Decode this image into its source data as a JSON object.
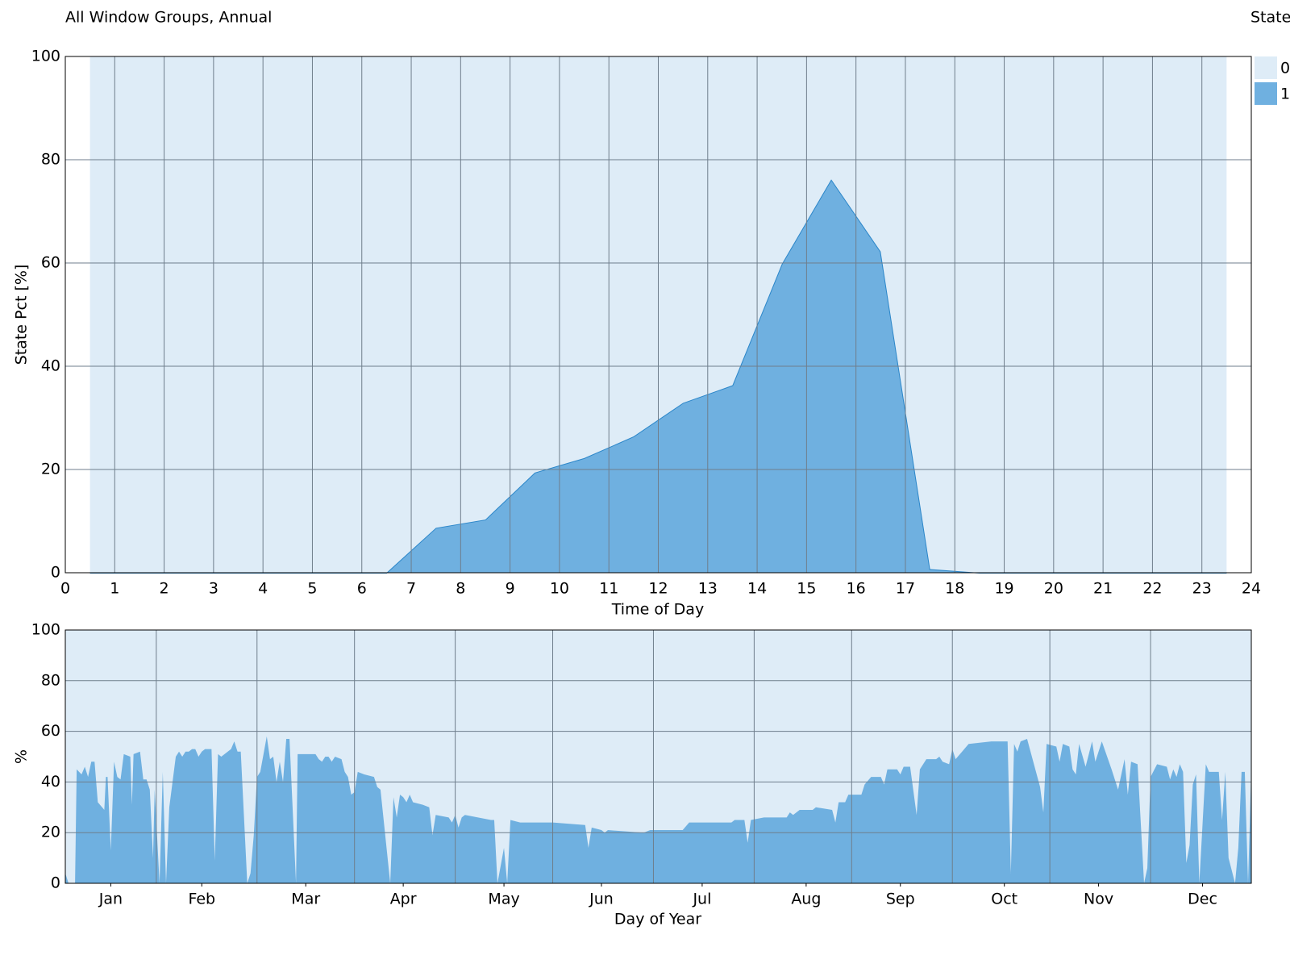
{
  "chart_data": [
    {
      "type": "stacked-area",
      "title": "All Window Groups, Annual",
      "legend_title": "State",
      "legend": "right",
      "xlabel": "Time of Day",
      "ylabel": "State Pct [%]",
      "x": [
        0.5,
        1.5,
        2.5,
        3.5,
        4.5,
        5.5,
        6.5,
        7.5,
        8.5,
        9.5,
        10.5,
        11.5,
        12.5,
        13.5,
        14.5,
        15.5,
        16.5,
        17.5,
        18.5,
        19.5,
        20.5,
        21.5,
        22.5,
        23.5
      ],
      "series": [
        {
          "name": "1",
          "color": "#6fb0e0",
          "line_color": "#2b86c9",
          "values": [
            0,
            0,
            0,
            0,
            0,
            0,
            0,
            8.7,
            10.3,
            19.4,
            22.2,
            26.4,
            32.9,
            36.3,
            59.8,
            76.2,
            62.2,
            0.7,
            0,
            0,
            0,
            0,
            0,
            0
          ]
        },
        {
          "name": "0",
          "color": "#deecf7",
          "values": [
            100,
            100,
            100,
            100,
            100,
            100,
            100,
            91.3,
            89.7,
            80.6,
            77.8,
            73.6,
            67.1,
            63.7,
            40.2,
            23.8,
            37.8,
            99.3,
            100,
            100,
            100,
            100,
            100,
            100
          ]
        }
      ],
      "xlim": [
        0,
        24
      ],
      "xticks": [
        0,
        1,
        2,
        3,
        4,
        5,
        6,
        7,
        8,
        9,
        10,
        11,
        12,
        13,
        14,
        15,
        16,
        17,
        18,
        19,
        20,
        21,
        22,
        23,
        24
      ],
      "ylim": [
        0,
        100
      ],
      "yticks": [
        0,
        20,
        40,
        60,
        80,
        100
      ],
      "grid": true
    },
    {
      "type": "area",
      "xlabel": "Day of Year",
      "ylabel": "%",
      "background": "#deecf7",
      "color": "#6fb0e0",
      "x": [
        0,
        1,
        3,
        3.5,
        5,
        6,
        7,
        8,
        9,
        10,
        12,
        12.5,
        13,
        14,
        15,
        16,
        17,
        18,
        20,
        20.5,
        21,
        23,
        24,
        25,
        26,
        27,
        27.5,
        29,
        30,
        31,
        32,
        34,
        35,
        36,
        37,
        38,
        39,
        40,
        41,
        42,
        43,
        45,
        46,
        47,
        48,
        50,
        51,
        52,
        53,
        54,
        56,
        57,
        58,
        59,
        60,
        62,
        63,
        64,
        65,
        66,
        67,
        68,
        69,
        71,
        71.5,
        77,
        78,
        79,
        80,
        81,
        82,
        83,
        85,
        86,
        87,
        88,
        89,
        90,
        92,
        95,
        96,
        97,
        100,
        101,
        102,
        103,
        104,
        105,
        106,
        107,
        110,
        112,
        113,
        114,
        118,
        119,
        120,
        121,
        122,
        123,
        131,
        132,
        133,
        135,
        136,
        137,
        140,
        150,
        160,
        161,
        162,
        165,
        166,
        167,
        178,
        180,
        190,
        192,
        205,
        206,
        209,
        210,
        211,
        215,
        222,
        223,
        224,
        226,
        230,
        231,
        236,
        237,
        238,
        240,
        241,
        245,
        246,
        248,
        251,
        252,
        253,
        256,
        257,
        258,
        260,
        262,
        263,
        265,
        268,
        269,
        270,
        272,
        273,
        274,
        276,
        278,
        285,
        290,
        291,
        292,
        293,
        294,
        296,
        300,
        301,
        302,
        305,
        306,
        307,
        309,
        310,
        311,
        312,
        314,
        316,
        317,
        319,
        322,
        324,
        326,
        327,
        328,
        330,
        332,
        333,
        334,
        336,
        339,
        340,
        341,
        342,
        343,
        344,
        345,
        346,
        347,
        348,
        349,
        351,
        352,
        355,
        356,
        357,
        358,
        360,
        361,
        362,
        363,
        364,
        365
      ],
      "values": [
        4,
        0,
        0,
        45,
        43,
        46,
        42,
        48,
        48,
        32,
        29,
        42,
        42,
        13,
        48,
        42,
        41,
        51,
        50,
        31,
        51,
        52,
        41,
        41,
        37,
        10,
        37,
        0,
        44,
        0,
        30,
        50,
        52,
        50,
        52,
        52,
        53,
        53,
        50,
        52,
        53,
        53,
        9,
        51,
        50,
        52,
        53,
        56,
        52,
        52,
        0,
        4,
        19,
        42,
        44,
        58,
        49,
        50,
        40,
        48,
        40,
        57,
        57,
        0,
        51,
        51,
        49,
        48,
        50,
        50,
        48,
        50,
        49,
        44,
        42,
        35,
        36,
        44,
        43,
        42,
        38,
        37,
        0,
        34,
        26,
        35,
        34,
        32,
        35,
        32,
        31,
        30,
        19,
        27,
        26,
        24,
        27,
        22,
        26,
        27,
        25,
        25,
        0,
        14,
        0,
        25,
        24,
        24,
        23,
        14,
        22,
        21,
        20,
        21,
        20,
        21,
        21,
        24,
        24,
        25,
        25,
        16,
        25,
        26,
        26,
        28,
        27,
        29,
        29,
        30,
        29,
        24,
        32,
        32,
        35,
        35,
        39,
        42,
        42,
        39,
        45,
        45,
        43,
        46,
        46,
        27,
        45,
        49,
        49,
        50,
        48,
        47,
        53,
        49,
        52,
        55,
        56,
        56,
        4,
        55,
        52,
        56,
        57,
        38,
        28,
        55,
        54,
        48,
        55,
        54,
        45,
        43,
        55,
        46,
        56,
        48,
        56,
        45,
        37,
        49,
        35,
        48,
        47,
        0,
        6,
        42,
        47,
        46,
        41,
        45,
        42,
        47,
        44,
        8,
        15,
        39,
        43,
        0,
        47,
        44,
        44,
        25,
        44,
        10,
        0,
        14,
        44,
        44,
        0,
        45
      ],
      "xlim": [
        0,
        365
      ],
      "xticks": [
        {
          "value": 14,
          "label": "Jan"
        },
        {
          "value": 42,
          "label": "Feb"
        },
        {
          "value": 74,
          "label": "Mar"
        },
        {
          "value": 104,
          "label": "Apr"
        },
        {
          "value": 135,
          "label": "May"
        },
        {
          "value": 165,
          "label": "Jun"
        },
        {
          "value": 196,
          "label": "Jul"
        },
        {
          "value": 228,
          "label": "Aug"
        },
        {
          "value": 257,
          "label": "Sep"
        },
        {
          "value": 289,
          "label": "Oct"
        },
        {
          "value": 318,
          "label": "Nov"
        },
        {
          "value": 350,
          "label": "Dec"
        }
      ],
      "xgrid": [
        28,
        59,
        89,
        120,
        150,
        181,
        212,
        242,
        273,
        303,
        334
      ],
      "ylim": [
        0,
        100
      ],
      "yticks": [
        0,
        20,
        40,
        60,
        80,
        100
      ],
      "grid": true
    }
  ]
}
